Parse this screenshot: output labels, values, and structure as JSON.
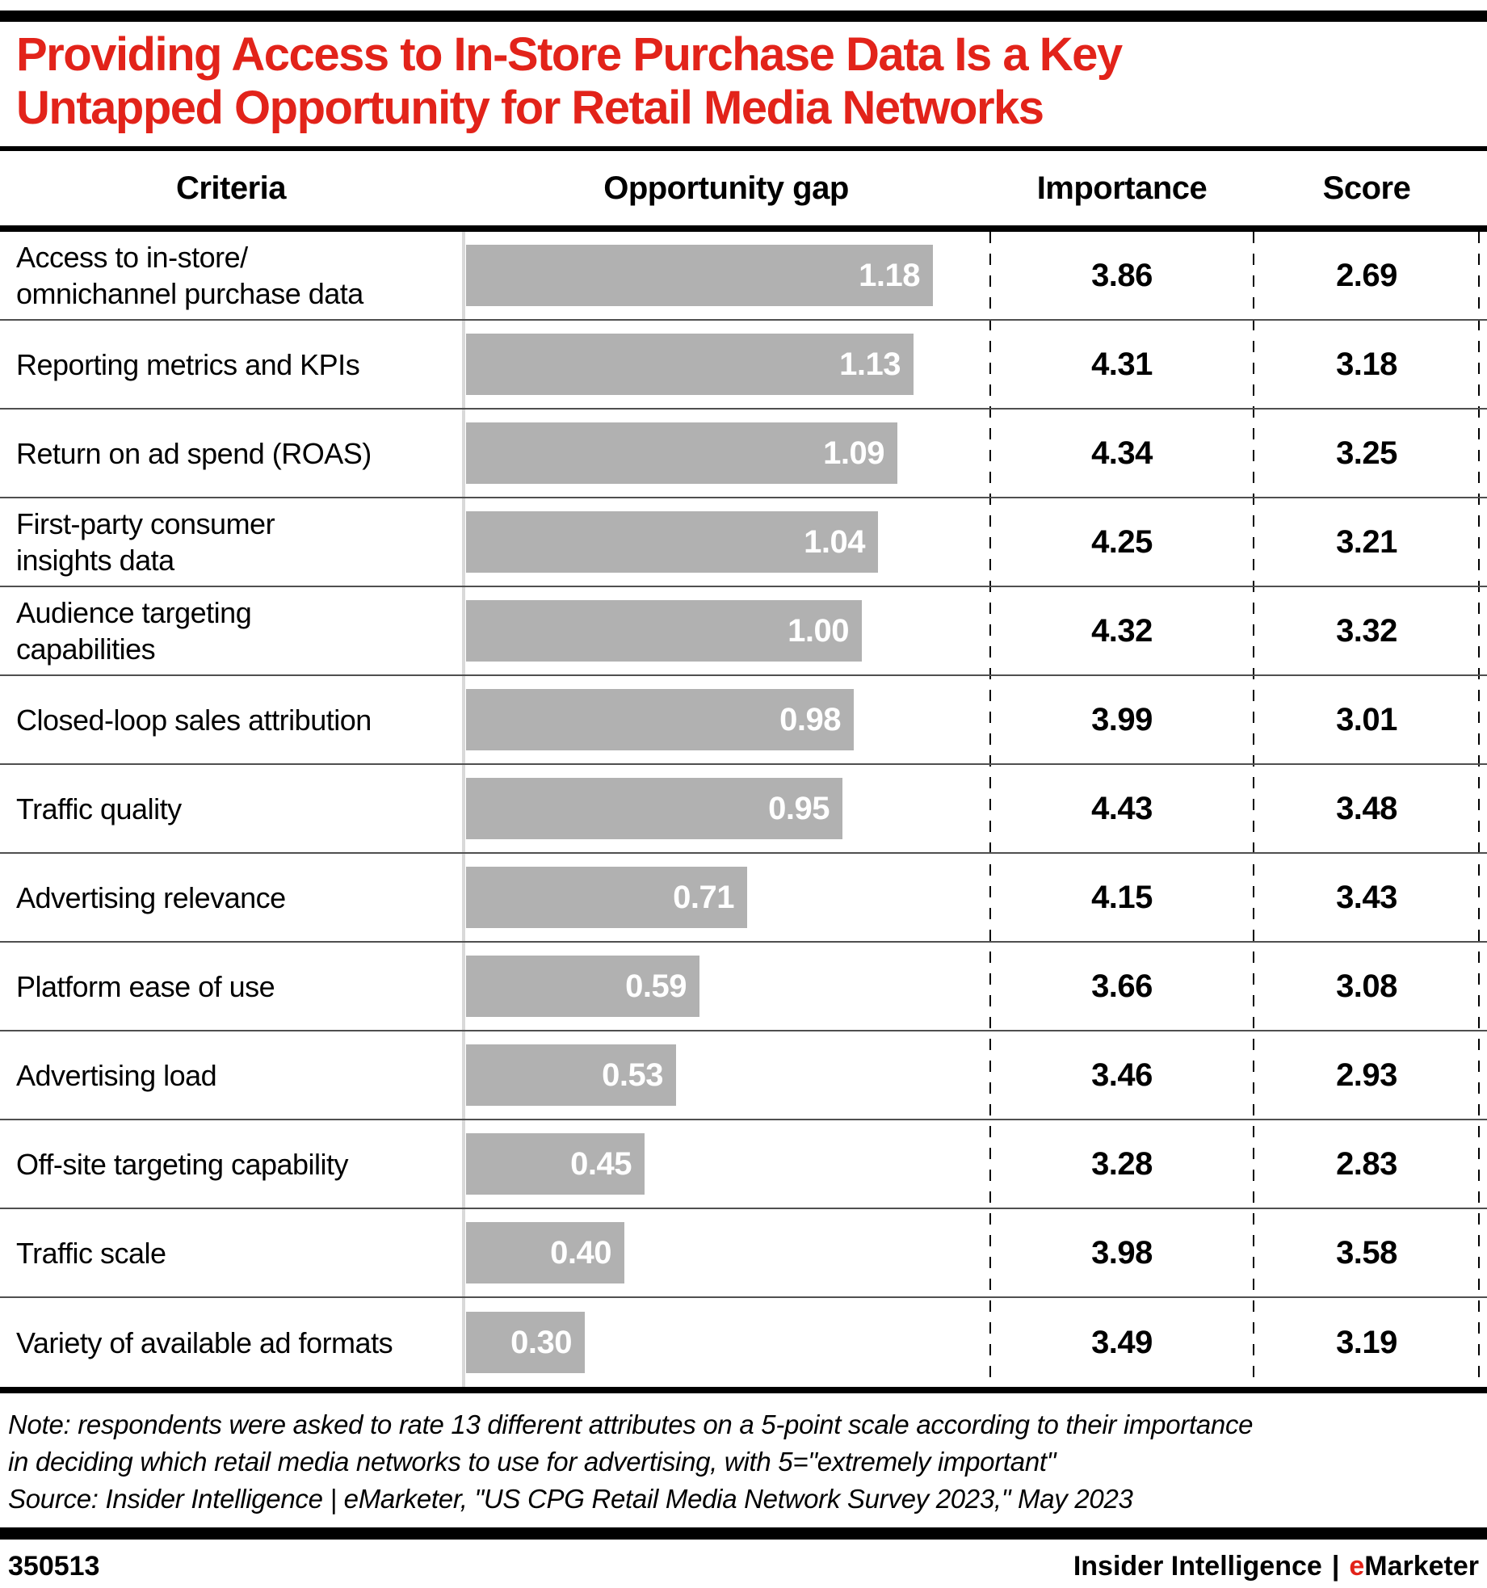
{
  "header": {
    "title_line1": "Providing Access to In-Store Purchase Data Is a Key",
    "title_line2": "Untapped Opportunity for Retail Media Networks"
  },
  "chart_data": {
    "type": "bar",
    "title": "Providing Access to In-Store Purchase Data Is a Key Untapped Opportunity for Retail Media Networks",
    "columns": {
      "criteria": "Criteria",
      "gap": "Opportunity gap",
      "importance": "Importance",
      "score": "Score"
    },
    "xlim": [
      0,
      1.33
    ],
    "bar_color": "#b1b1b1",
    "rows": [
      {
        "criteria": "Access to in-store/\nomnichannel purchase data",
        "gap": 1.18,
        "gap_label": "1.18",
        "importance": "3.86",
        "score": "2.69"
      },
      {
        "criteria": "Reporting metrics and KPIs",
        "gap": 1.13,
        "gap_label": "1.13",
        "importance": "4.31",
        "score": "3.18"
      },
      {
        "criteria": "Return on ad spend (ROAS)",
        "gap": 1.09,
        "gap_label": "1.09",
        "importance": "4.34",
        "score": "3.25"
      },
      {
        "criteria": "First-party consumer\ninsights data",
        "gap": 1.04,
        "gap_label": "1.04",
        "importance": "4.25",
        "score": "3.21"
      },
      {
        "criteria": "Audience targeting\ncapabilities",
        "gap": 1.0,
        "gap_label": "1.00",
        "importance": "4.32",
        "score": "3.32"
      },
      {
        "criteria": "Closed-loop sales attribution",
        "gap": 0.98,
        "gap_label": "0.98",
        "importance": "3.99",
        "score": "3.01"
      },
      {
        "criteria": "Traffic quality",
        "gap": 0.95,
        "gap_label": "0.95",
        "importance": "4.43",
        "score": "3.48"
      },
      {
        "criteria": "Advertising relevance",
        "gap": 0.71,
        "gap_label": "0.71",
        "importance": "4.15",
        "score": "3.43"
      },
      {
        "criteria": "Platform ease of use",
        "gap": 0.59,
        "gap_label": "0.59",
        "importance": "3.66",
        "score": "3.08"
      },
      {
        "criteria": "Advertising load",
        "gap": 0.53,
        "gap_label": "0.53",
        "importance": "3.46",
        "score": "2.93"
      },
      {
        "criteria": "Off-site targeting capability",
        "gap": 0.45,
        "gap_label": "0.45",
        "importance": "3.28",
        "score": "2.83"
      },
      {
        "criteria": "Traffic scale",
        "gap": 0.4,
        "gap_label": "0.40",
        "importance": "3.98",
        "score": "3.58"
      },
      {
        "criteria": "Variety of available ad formats",
        "gap": 0.3,
        "gap_label": "0.30",
        "importance": "3.49",
        "score": "3.19"
      }
    ]
  },
  "note": {
    "line1": "Note: respondents were asked to rate 13 different attributes on a 5-point scale according to their importance",
    "line2": "in deciding which retail media networks to use for advertising, with 5=\"extremely important\"",
    "source": "Source: Insider Intelligence | eMarketer, \"US CPG Retail Media Network Survey 2023,\" May 2023"
  },
  "footer": {
    "chart_id": "350513",
    "brand_left": "Insider Intelligence",
    "brand_divider": "|",
    "brand_e": "e",
    "brand_rest": "Marketer"
  },
  "colors": {
    "title_red": "#e2231a",
    "bar_gray": "#b1b1b1",
    "brand_red": "#e2231a"
  }
}
